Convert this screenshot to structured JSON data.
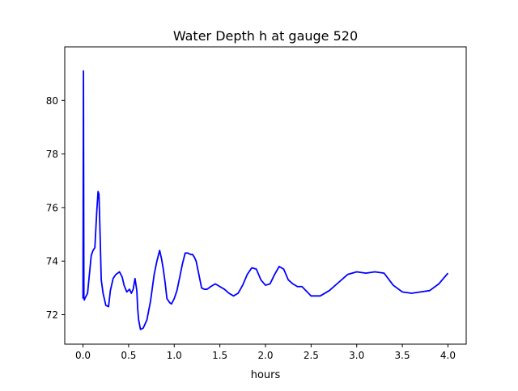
{
  "chart_data": {
    "type": "line",
    "title": "Water Depth h at gauge 520",
    "xlabel": "hours",
    "ylabel": "",
    "xlim": [
      -0.2,
      4.2
    ],
    "ylim": [
      70.9,
      82.0
    ],
    "xticks": [
      0.0,
      0.5,
      1.0,
      1.5,
      2.0,
      2.5,
      3.0,
      3.5,
      4.0
    ],
    "xtick_labels": [
      "0.0",
      "0.5",
      "1.0",
      "1.5",
      "2.0",
      "2.5",
      "3.0",
      "3.5",
      "4.0"
    ],
    "yticks": [
      72,
      74,
      76,
      78,
      80
    ],
    "ytick_labels": [
      "72",
      "74",
      "76",
      "78",
      "80"
    ],
    "grid": false,
    "legend": "none",
    "series": [
      {
        "color": "#0000ff",
        "x": [
          0.0,
          0.005,
          0.01,
          0.015,
          0.02,
          0.05,
          0.07,
          0.09,
          0.11,
          0.13,
          0.15,
          0.165,
          0.175,
          0.185,
          0.2,
          0.22,
          0.25,
          0.28,
          0.3,
          0.33,
          0.36,
          0.4,
          0.43,
          0.45,
          0.48,
          0.51,
          0.53,
          0.55,
          0.57,
          0.59,
          0.6,
          0.61,
          0.63,
          0.66,
          0.7,
          0.74,
          0.78,
          0.81,
          0.84,
          0.86,
          0.88,
          0.9,
          0.92,
          0.95,
          0.97,
          1.0,
          1.03,
          1.06,
          1.09,
          1.12,
          1.15,
          1.18,
          1.2,
          1.22,
          1.24,
          1.27,
          1.3,
          1.33,
          1.36,
          1.4,
          1.45,
          1.5,
          1.55,
          1.6,
          1.65,
          1.7,
          1.75,
          1.8,
          1.85,
          1.9,
          1.95,
          2.0,
          2.05,
          2.1,
          2.15,
          2.2,
          2.25,
          2.3,
          2.35,
          2.4,
          2.5,
          2.6,
          2.7,
          2.8,
          2.9,
          3.0,
          3.1,
          3.2,
          3.3,
          3.4,
          3.5,
          3.6,
          3.7,
          3.8,
          3.9,
          4.0
        ],
        "y": [
          72.6,
          81.1,
          72.6,
          72.55,
          72.6,
          72.8,
          73.5,
          74.2,
          74.4,
          74.5,
          75.8,
          76.6,
          76.5,
          75.3,
          73.3,
          72.8,
          72.35,
          72.3,
          72.9,
          73.35,
          73.5,
          73.6,
          73.4,
          73.1,
          72.85,
          72.95,
          72.8,
          72.95,
          73.35,
          72.9,
          72.2,
          71.8,
          71.45,
          71.5,
          71.8,
          72.5,
          73.5,
          74.0,
          74.4,
          74.1,
          73.7,
          73.2,
          72.6,
          72.45,
          72.4,
          72.6,
          72.9,
          73.4,
          73.9,
          74.3,
          74.3,
          74.25,
          74.25,
          74.15,
          74.0,
          73.5,
          73.0,
          72.95,
          72.95,
          73.05,
          73.15,
          73.05,
          72.95,
          72.8,
          72.7,
          72.8,
          73.1,
          73.5,
          73.75,
          73.7,
          73.3,
          73.1,
          73.15,
          73.5,
          73.8,
          73.7,
          73.3,
          73.15,
          73.05,
          73.05,
          72.7,
          72.7,
          72.9,
          73.2,
          73.5,
          73.6,
          73.55,
          73.6,
          73.55,
          73.1,
          72.85,
          72.8,
          72.85,
          72.9,
          73.15,
          73.55
        ]
      }
    ]
  }
}
